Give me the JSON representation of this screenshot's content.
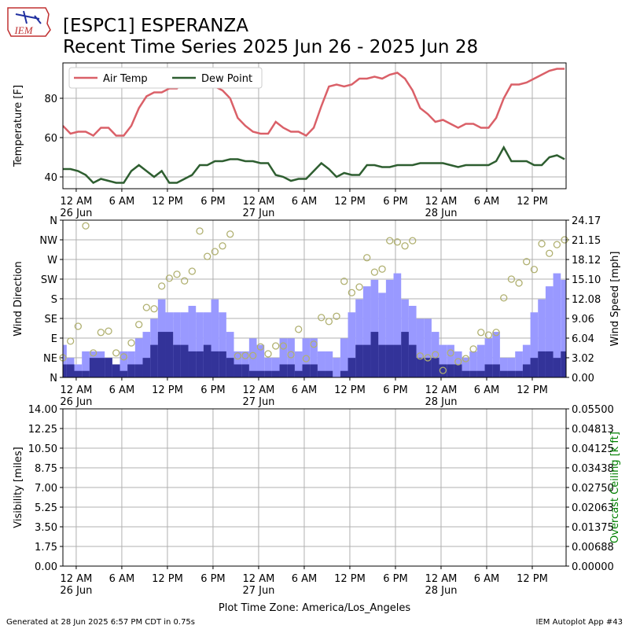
{
  "title": "[ESPC1] ESPERANZA",
  "subtitle": "Recent Time Series 2025 Jun 26 - 2025 Jun 28",
  "logo_text": "IEM",
  "footer_left": "Generated at 28 Jun 2025 6:57 PM CDT in 0.75s",
  "footer_right": "IEM Autoplot App #43",
  "chart_data": [
    {
      "type": "line",
      "ylabel": "Temperature [F]",
      "x": [
        "2025-06-25T22:15",
        "2025-06-25T23:15",
        "2025-06-26T00:15",
        "2025-06-26T01:15",
        "2025-06-26T02:15",
        "2025-06-26T03:15",
        "2025-06-26T04:15",
        "2025-06-26T05:15",
        "2025-06-26T06:15",
        "2025-06-26T07:15",
        "2025-06-26T08:15",
        "2025-06-26T09:15",
        "2025-06-26T10:15",
        "2025-06-26T11:15",
        "2025-06-26T12:15",
        "2025-06-26T13:15",
        "2025-06-26T14:15",
        "2025-06-26T15:15",
        "2025-06-26T16:15",
        "2025-06-26T17:15",
        "2025-06-26T18:15",
        "2025-06-26T19:15",
        "2025-06-26T20:15",
        "2025-06-26T21:15",
        "2025-06-26T22:15",
        "2025-06-26T23:15",
        "2025-06-27T00:15",
        "2025-06-27T01:15",
        "2025-06-27T02:15",
        "2025-06-27T03:15",
        "2025-06-27T04:15",
        "2025-06-27T05:15",
        "2025-06-27T06:15",
        "2025-06-27T07:15",
        "2025-06-27T08:15",
        "2025-06-27T09:15",
        "2025-06-27T10:15",
        "2025-06-27T11:15",
        "2025-06-27T12:15",
        "2025-06-27T13:15",
        "2025-06-27T14:15",
        "2025-06-27T15:15",
        "2025-06-27T16:15",
        "2025-06-27T17:15",
        "2025-06-27T18:15",
        "2025-06-27T19:15",
        "2025-06-27T20:15",
        "2025-06-27T21:15",
        "2025-06-27T22:15",
        "2025-06-27T23:15",
        "2025-06-28T00:15",
        "2025-06-28T01:15",
        "2025-06-28T02:15",
        "2025-06-28T03:15",
        "2025-06-28T04:15",
        "2025-06-28T05:15",
        "2025-06-28T06:15",
        "2025-06-28T07:15",
        "2025-06-28T08:15",
        "2025-06-28T09:15",
        "2025-06-28T10:15",
        "2025-06-28T11:15",
        "2025-06-28T12:15",
        "2025-06-28T13:15",
        "2025-06-28T14:15",
        "2025-06-28T15:15",
        "2025-06-28T16:15"
      ],
      "xlim": [
        "2025-06-25T22:15",
        "2025-06-28T16:27"
      ],
      "xticks": [
        {
          "value": "2025-06-26T00:00",
          "label": "12 AM\n26 Jun"
        },
        {
          "value": "2025-06-26T06:00",
          "label": "6 AM"
        },
        {
          "value": "2025-06-26T12:00",
          "label": "12 PM"
        },
        {
          "value": "2025-06-26T18:00",
          "label": "6 PM"
        },
        {
          "value": "2025-06-27T00:00",
          "label": "12 AM\n27 Jun"
        },
        {
          "value": "2025-06-27T06:00",
          "label": "6 AM"
        },
        {
          "value": "2025-06-27T12:00",
          "label": "12 PM"
        },
        {
          "value": "2025-06-27T18:00",
          "label": "6 PM"
        },
        {
          "value": "2025-06-28T00:00",
          "label": "12 AM\n28 Jun"
        },
        {
          "value": "2025-06-28T06:00",
          "label": "6 AM"
        },
        {
          "value": "2025-06-28T12:00",
          "label": "12 PM"
        }
      ],
      "ylim": [
        34,
        98
      ],
      "yticks": [
        40,
        60,
        80
      ],
      "grid": true,
      "legend": "upper left",
      "series": [
        {
          "name": "Air Temp",
          "color": "#da6068",
          "values": [
            66,
            62,
            63,
            63,
            61,
            65,
            65,
            61,
            61,
            66,
            75,
            81,
            83,
            83,
            85,
            85,
            89,
            89,
            87,
            86,
            86,
            84,
            80,
            70,
            66,
            63,
            62,
            62,
            68,
            65,
            63,
            63,
            61,
            65,
            76,
            86,
            87,
            86,
            87,
            90,
            90,
            91,
            90,
            92,
            93,
            90,
            84,
            75,
            72,
            68,
            69,
            67,
            65,
            67,
            67,
            65,
            65,
            70,
            80,
            87,
            87,
            88,
            90,
            92,
            94,
            95,
            95
          ]
        },
        {
          "name": "Dew Point",
          "color": "#2e5e30",
          "values": [
            44,
            44,
            43,
            41,
            37,
            39,
            38,
            37,
            37,
            43,
            46,
            43,
            40,
            43,
            37,
            37,
            39,
            41,
            46,
            46,
            48,
            48,
            49,
            49,
            48,
            48,
            47,
            47,
            41,
            40,
            38,
            39,
            39,
            43,
            47,
            44,
            40,
            42,
            41,
            41,
            46,
            46,
            45,
            45,
            46,
            46,
            46,
            47,
            47,
            47,
            47,
            46,
            45,
            46,
            46,
            46,
            46,
            48,
            55,
            48,
            48,
            48,
            46,
            46,
            50,
            51,
            49
          ]
        }
      ]
    },
    {
      "type": "bar",
      "ylabel": "Wind Direction",
      "y2label": "Wind Speed [mph]",
      "x": [
        "2025-06-25T22:15",
        "2025-06-25T23:15",
        "2025-06-26T00:15",
        "2025-06-26T01:15",
        "2025-06-26T02:15",
        "2025-06-26T03:15",
        "2025-06-26T04:15",
        "2025-06-26T05:15",
        "2025-06-26T06:15",
        "2025-06-26T07:15",
        "2025-06-26T08:15",
        "2025-06-26T09:15",
        "2025-06-26T10:15",
        "2025-06-26T11:15",
        "2025-06-26T12:15",
        "2025-06-26T13:15",
        "2025-06-26T14:15",
        "2025-06-26T15:15",
        "2025-06-26T16:15",
        "2025-06-26T17:15",
        "2025-06-26T18:15",
        "2025-06-26T19:15",
        "2025-06-26T20:15",
        "2025-06-26T21:15",
        "2025-06-26T22:15",
        "2025-06-26T23:15",
        "2025-06-27T00:15",
        "2025-06-27T01:15",
        "2025-06-27T02:15",
        "2025-06-27T03:15",
        "2025-06-27T04:15",
        "2025-06-27T05:15",
        "2025-06-27T06:15",
        "2025-06-27T07:15",
        "2025-06-27T08:15",
        "2025-06-27T09:15",
        "2025-06-27T10:15",
        "2025-06-27T11:15",
        "2025-06-27T12:15",
        "2025-06-27T13:15",
        "2025-06-27T14:15",
        "2025-06-27T15:15",
        "2025-06-27T16:15",
        "2025-06-27T17:15",
        "2025-06-27T18:15",
        "2025-06-27T19:15",
        "2025-06-27T20:15",
        "2025-06-27T21:15",
        "2025-06-27T22:15",
        "2025-06-27T23:15",
        "2025-06-28T00:15",
        "2025-06-28T01:15",
        "2025-06-28T02:15",
        "2025-06-28T03:15",
        "2025-06-28T04:15",
        "2025-06-28T05:15",
        "2025-06-28T06:15",
        "2025-06-28T07:15",
        "2025-06-28T08:15",
        "2025-06-28T09:15",
        "2025-06-28T10:15",
        "2025-06-28T11:15",
        "2025-06-28T12:15",
        "2025-06-28T13:15",
        "2025-06-28T14:15",
        "2025-06-28T15:15",
        "2025-06-28T16:15"
      ],
      "xlim": [
        "2025-06-25T22:15",
        "2025-06-28T16:27"
      ],
      "xticks": [
        {
          "value": "2025-06-26T00:00",
          "label": "12 AM\n26 Jun"
        },
        {
          "value": "2025-06-26T06:00",
          "label": "6 AM"
        },
        {
          "value": "2025-06-26T12:00",
          "label": "12 PM"
        },
        {
          "value": "2025-06-26T18:00",
          "label": "6 PM"
        },
        {
          "value": "2025-06-27T00:00",
          "label": "12 AM\n27 Jun"
        },
        {
          "value": "2025-06-27T06:00",
          "label": "6 AM"
        },
        {
          "value": "2025-06-27T12:00",
          "label": "12 PM"
        },
        {
          "value": "2025-06-27T18:00",
          "label": "6 PM"
        },
        {
          "value": "2025-06-28T00:00",
          "label": "12 AM\n28 Jun"
        },
        {
          "value": "2025-06-28T06:00",
          "label": "6 AM"
        },
        {
          "value": "2025-06-28T12:00",
          "label": "12 PM"
        }
      ],
      "ylim": [
        0,
        360
      ],
      "yticks": [
        {
          "value": 0,
          "label": "N"
        },
        {
          "value": 45,
          "label": "NE"
        },
        {
          "value": 90,
          "label": "E"
        },
        {
          "value": 135,
          "label": "SE"
        },
        {
          "value": 180,
          "label": "S"
        },
        {
          "value": 225,
          "label": "SW"
        },
        {
          "value": 270,
          "label": "W"
        },
        {
          "value": 315,
          "label": "NW"
        },
        {
          "value": 360,
          "label": "N"
        }
      ],
      "y2lim": [
        0,
        24.17
      ],
      "y2ticks": [
        {
          "value": 0,
          "label": "0.00"
        },
        3.02,
        6.04,
        9.06,
        12.08,
        {
          "value": 15.1,
          "label": "15.10"
        },
        18.12,
        21.15,
        24.17
      ],
      "grid": true,
      "series": [
        {
          "type": "bar",
          "axis": "y2",
          "color": "#9999ff",
          "values": [
            5,
            3,
            2,
            4,
            4,
            4,
            3,
            1,
            4,
            4,
            6,
            7,
            9,
            12,
            10,
            10,
            10,
            11,
            10,
            10,
            12,
            10,
            7,
            4,
            4,
            6,
            5,
            3,
            3,
            6,
            6,
            4,
            6,
            6,
            4,
            4,
            3,
            6,
            10,
            12,
            14,
            15,
            13,
            15,
            16,
            12,
            11,
            9,
            9,
            7,
            5,
            5,
            4,
            3,
            4,
            5,
            6,
            7,
            3,
            3,
            4,
            5,
            10,
            12,
            14,
            16,
            15
          ]
        },
        {
          "type": "bar",
          "axis": "y2",
          "color": "#333399",
          "values": [
            2,
            2,
            1,
            1,
            3,
            3,
            3,
            2,
            1,
            2,
            2,
            3,
            5,
            7,
            7,
            5,
            5,
            4,
            4,
            5,
            4,
            4,
            3,
            2,
            2,
            1,
            1,
            1,
            1,
            2,
            2,
            1,
            2,
            2,
            1,
            1,
            0,
            1,
            3,
            5,
            5,
            7,
            5,
            5,
            5,
            7,
            5,
            3,
            3,
            3,
            2,
            2,
            2,
            1,
            1,
            1,
            2,
            2,
            1,
            1,
            1,
            2,
            3,
            4,
            4,
            3,
            4
          ]
        },
        {
          "type": "scatter",
          "color": "#b0b070",
          "values": [
            45,
            83,
            117,
            347,
            56,
            103,
            106,
            56,
            47,
            79,
            121,
            160,
            157,
            209,
            227,
            236,
            221,
            243,
            335,
            277,
            288,
            301,
            328,
            49,
            50,
            50,
            70,
            54,
            72,
            72,
            52,
            110,
            43,
            76,
            137,
            128,
            140,
            220,
            194,
            207,
            274,
            241,
            248,
            313,
            310,
            301,
            313,
            49,
            45,
            52,
            16,
            56,
            36,
            43,
            65,
            103,
            97,
            103,
            182,
            225,
            216,
            265,
            247,
            306,
            284,
            304,
            315
          ]
        }
      ]
    },
    {
      "type": "line",
      "ylabel": "Visibility [miles]",
      "y2label": "Overcast Ceiling [k ft]",
      "y2label_color": "#008000",
      "xlabel": "Plot Time Zone: America/Los_Angeles",
      "xlim": [
        "2025-06-25T22:15",
        "2025-06-28T16:27"
      ],
      "xticks": [
        {
          "value": "2025-06-26T00:00",
          "label": "12 AM\n26 Jun"
        },
        {
          "value": "2025-06-26T06:00",
          "label": "6 AM"
        },
        {
          "value": "2025-06-26T12:00",
          "label": "12 PM"
        },
        {
          "value": "2025-06-26T18:00",
          "label": "6 PM"
        },
        {
          "value": "2025-06-27T00:00",
          "label": "12 AM\n27 Jun"
        },
        {
          "value": "2025-06-27T06:00",
          "label": "6 AM"
        },
        {
          "value": "2025-06-27T12:00",
          "label": "12 PM"
        },
        {
          "value": "2025-06-27T18:00",
          "label": "6 PM"
        },
        {
          "value": "2025-06-28T00:00",
          "label": "12 AM\n28 Jun"
        },
        {
          "value": "2025-06-28T06:00",
          "label": "6 AM"
        },
        {
          "value": "2025-06-28T12:00",
          "label": "12 PM"
        }
      ],
      "ylim": [
        0,
        14
      ],
      "yticks": [
        {
          "value": 0,
          "label": "0.00"
        },
        1.75,
        {
          "value": 3.5,
          "label": "3.50"
        },
        5.25,
        {
          "value": 7,
          "label": "7.00"
        },
        8.75,
        {
          "value": 10.5,
          "label": "10.50"
        },
        12.25,
        {
          "value": 14,
          "label": "14.00"
        }
      ],
      "y2lim": [
        0,
        0.055
      ],
      "y2ticks": [
        {
          "value": 0,
          "label": "0.00000"
        },
        {
          "value": 0.006875,
          "label": "0.00688"
        },
        0.01375,
        {
          "value": 0.020625,
          "label": "0.02063"
        },
        {
          "value": 0.0275,
          "label": "0.02750"
        },
        {
          "value": 0.034375,
          "label": "0.03438"
        },
        0.04125,
        {
          "value": 0.048125,
          "label": "0.04813"
        },
        {
          "value": 0.055,
          "label": "0.05500"
        }
      ],
      "grid": true,
      "series": []
    }
  ]
}
